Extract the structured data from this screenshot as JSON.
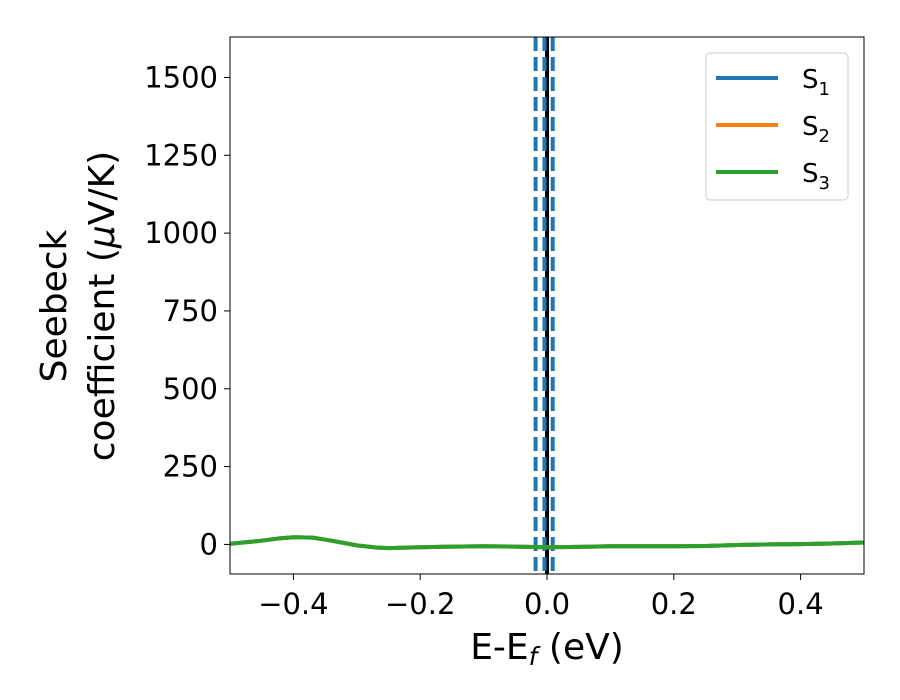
{
  "chart_data": {
    "type": "line",
    "xlabel": "E-E",
    "xlabel_sub": "f",
    "xlabel_unit": " (eV)",
    "ylabel_line1": "Seebeck",
    "ylabel_line2": "coefficient  (",
    "ylabel_mu": "μ",
    "ylabel_unit": "V/K)",
    "xlim": [
      -0.5,
      0.5
    ],
    "ylim": [
      -95,
      1630
    ],
    "xticks": [
      -0.4,
      -0.2,
      0.0,
      0.2,
      0.4
    ],
    "xtick_labels": [
      "−0.4",
      "−0.2",
      "0.0",
      "0.2",
      "0.4"
    ],
    "yticks": [
      0,
      250,
      500,
      750,
      1000,
      1250,
      1500
    ],
    "ytick_labels": [
      "0",
      "250",
      "500",
      "750",
      "1000",
      "1250",
      "1500"
    ],
    "grid": false,
    "legend_position": "top-right",
    "vlines": [
      {
        "x": 0.0,
        "color": "#000000",
        "style": "solid"
      },
      {
        "x": -0.018,
        "color": "#1f77b4",
        "style": "dashed"
      },
      {
        "x": -0.004,
        "color": "#1f77b4",
        "style": "dashed"
      },
      {
        "x": 0.009,
        "color": "#1f77b4",
        "style": "dashed"
      }
    ],
    "series": [
      {
        "name": "S",
        "sub": "1",
        "color": "#1f77b4",
        "x": [
          -0.5,
          -0.45,
          -0.42,
          -0.4,
          -0.37,
          -0.34,
          -0.3,
          -0.27,
          -0.25,
          -0.2,
          -0.15,
          -0.1,
          -0.05,
          0.0,
          0.05,
          0.1,
          0.15,
          0.2,
          0.25,
          0.3,
          0.35,
          0.4,
          0.45,
          0.5
        ],
        "y": [
          2,
          12,
          20,
          23,
          22,
          12,
          -3,
          -10,
          -12,
          -9,
          -7,
          -6,
          -7,
          -9,
          -8,
          -6,
          -6,
          -6,
          -5,
          -2,
          0,
          1,
          3,
          6
        ]
      },
      {
        "name": "S",
        "sub": "2",
        "color": "#ff7f0e",
        "x": [
          -0.5,
          -0.45,
          -0.42,
          -0.4,
          -0.37,
          -0.34,
          -0.3,
          -0.27,
          -0.25,
          -0.2,
          -0.15,
          -0.1,
          -0.05,
          0.0,
          0.05,
          0.1,
          0.15,
          0.2,
          0.25,
          0.3,
          0.35,
          0.4,
          0.45,
          0.5
        ],
        "y": [
          2,
          12,
          20,
          23,
          22,
          12,
          -3,
          -10,
          -12,
          -9,
          -7,
          -6,
          -7,
          -9,
          -8,
          -6,
          -6,
          -6,
          -5,
          -2,
          0,
          1,
          3,
          6
        ]
      },
      {
        "name": "S",
        "sub": "3",
        "color": "#2ca02c",
        "x": [
          -0.5,
          -0.45,
          -0.42,
          -0.4,
          -0.37,
          -0.34,
          -0.3,
          -0.27,
          -0.25,
          -0.2,
          -0.15,
          -0.1,
          -0.05,
          0.0,
          0.05,
          0.1,
          0.15,
          0.2,
          0.25,
          0.3,
          0.35,
          0.4,
          0.45,
          0.5
        ],
        "y": [
          2,
          12,
          20,
          23,
          22,
          12,
          -3,
          -10,
          -12,
          -9,
          -7,
          -6,
          -7,
          -9,
          -8,
          -6,
          -6,
          -6,
          -5,
          -2,
          0,
          1,
          3,
          6
        ]
      }
    ]
  }
}
